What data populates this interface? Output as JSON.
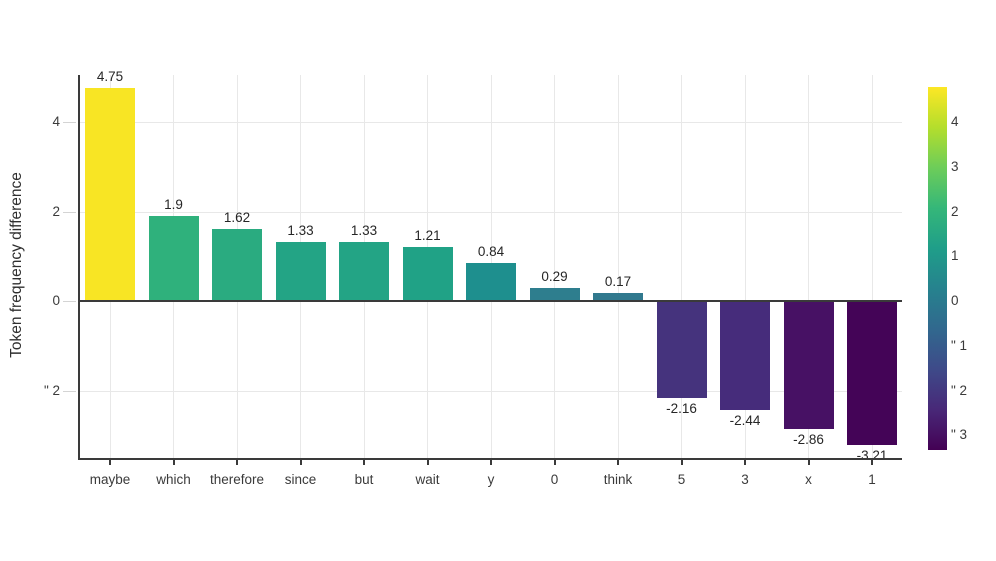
{
  "figure": {
    "background": "#ffffff"
  },
  "chart_data": {
    "type": "bar",
    "title": "",
    "xlabel": "",
    "ylabel": "Token frequency difference",
    "categories": [
      "maybe",
      "which",
      "therefore",
      "since",
      "but",
      "wait",
      "y",
      "0",
      "think",
      "5",
      "3",
      "x",
      "1"
    ],
    "values": [
      4.75,
      1.9,
      1.62,
      1.33,
      1.33,
      1.21,
      0.84,
      0.29,
      0.17,
      -2.16,
      -2.44,
      -2.86,
      -3.21
    ],
    "bar_labels": [
      "4.75",
      "1.9",
      "1.62",
      "1.33",
      "1.33",
      "1.21",
      "0.84",
      "0.29",
      "0.17",
      "-2.16",
      "-2.44",
      "-2.86",
      "-3.21"
    ],
    "bar_colors": [
      "#f8e524",
      "#2fb17c",
      "#2aab80",
      "#23a485",
      "#23a485",
      "#20a286",
      "#1e8f8e",
      "#2e7e8e",
      "#31798e",
      "#45337d",
      "#462c7b",
      "#471164",
      "#440457"
    ],
    "ylim": [
      -3.55,
      5.05
    ],
    "grid": {
      "horizontal_values": [
        4,
        2,
        -2
      ],
      "vertical": "at-category-centers",
      "color": "#e8e8e8"
    },
    "axis": {
      "yticks": [
        {
          "value": 4,
          "label": "4"
        },
        {
          "value": 2,
          "label": "2"
        },
        {
          "value": 0,
          "label": "0"
        },
        {
          "value": -2,
          "label": "\" 2"
        }
      ],
      "spine_color": "#3a3a3a",
      "zero_line_color": "#3a3a3a"
    },
    "legend_position": "right-colorbar",
    "colorbar": {
      "colormap": "viridis",
      "range": [
        -3.33,
        4.78
      ],
      "ticks": [
        {
          "value": 4,
          "label": "4"
        },
        {
          "value": 3,
          "label": "3"
        },
        {
          "value": 2,
          "label": "2"
        },
        {
          "value": 1,
          "label": "1"
        },
        {
          "value": 0,
          "label": "0"
        },
        {
          "value": -1,
          "label": "\" 1"
        },
        {
          "value": -2,
          "label": "\" 2"
        },
        {
          "value": -3,
          "label": "\" 3"
        }
      ],
      "gradient_stops": [
        "#440154",
        "#482878",
        "#3e4a89",
        "#31688e",
        "#26828e",
        "#1f9e89",
        "#35b779",
        "#6dcd59",
        "#b4de2c",
        "#fde725"
      ]
    }
  }
}
